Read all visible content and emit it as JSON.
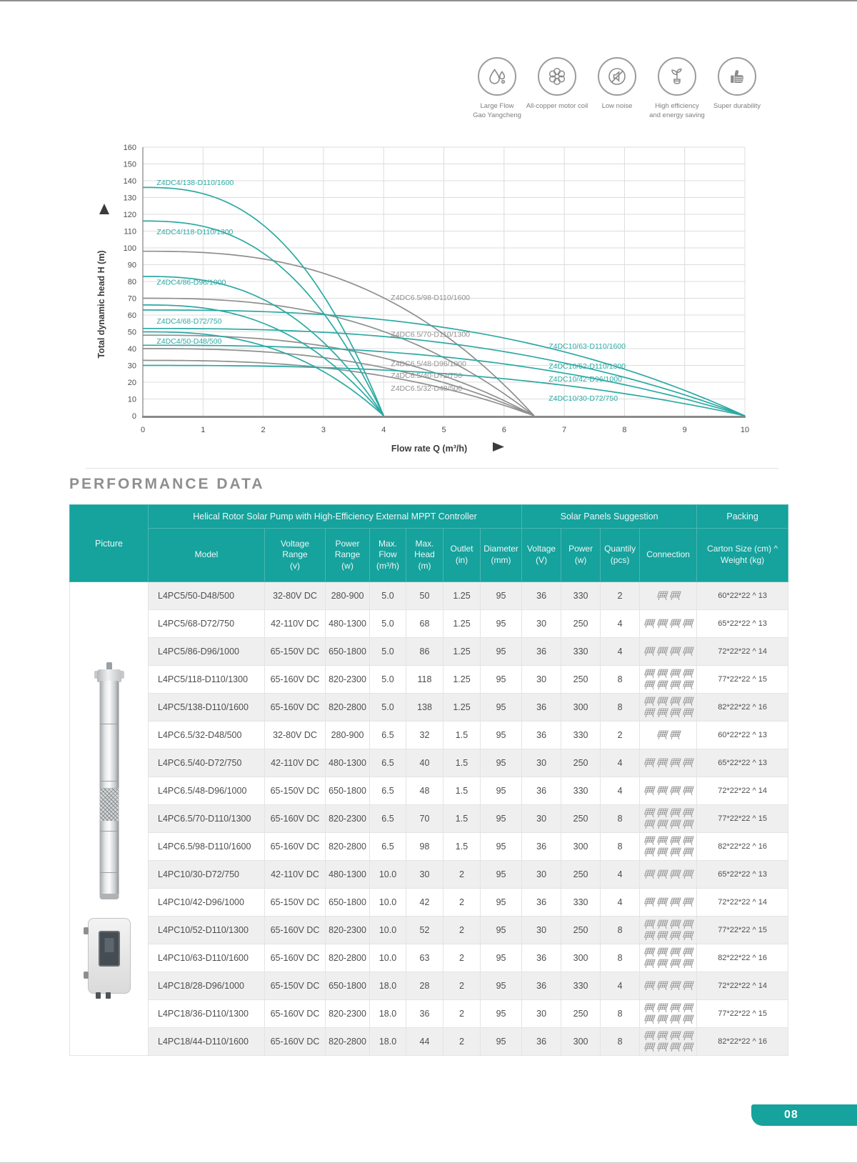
{
  "page": {
    "number": "08"
  },
  "features": [
    {
      "icon": "water-drops-icon",
      "label_lines": [
        "Large Flow",
        "Gao Yangcheng"
      ]
    },
    {
      "icon": "motor-coil-icon",
      "label_lines": [
        "All-copper motor coil"
      ]
    },
    {
      "icon": "low-noise-icon",
      "label_lines": [
        "Low noise"
      ]
    },
    {
      "icon": "energy-saving-icon",
      "label_lines": [
        "High efficiency",
        "and energy saving"
      ]
    },
    {
      "icon": "thumbs-up-icon",
      "label_lines": [
        "Super durability"
      ]
    }
  ],
  "chart_data": {
    "type": "line",
    "xlabel": "Flow rate Q (m³/h)",
    "ylabel": "Total dynamic head H (m)",
    "xlim": [
      0,
      10
    ],
    "ylim": [
      0,
      160
    ],
    "x_tick_step": 1,
    "y_tick_step": 10,
    "grid": true,
    "colors": {
      "teal": "#2ca9a3",
      "gray": "#8f8f8f"
    },
    "series": [
      {
        "name": "Z4DC6.5/98-D110/1600",
        "color_key": "gray",
        "shutoff_head": 98,
        "max_flow": 6.5
      },
      {
        "name": "Z4DC6.5/70-D110/1300",
        "color_key": "gray",
        "shutoff_head": 70,
        "max_flow": 6.5
      },
      {
        "name": "Z4DC6.5/48-D96/1000",
        "color_key": "gray",
        "shutoff_head": 48,
        "max_flow": 6.5
      },
      {
        "name": "Z4DC6.5/40-D72/750",
        "color_key": "gray",
        "shutoff_head": 40,
        "max_flow": 6.5
      },
      {
        "name": "Z4DC6.5/32-D48/500",
        "color_key": "gray",
        "shutoff_head": 33,
        "max_flow": 6.5
      },
      {
        "name": "Z4DC4/138-D110/1600",
        "color_key": "teal",
        "shutoff_head": 136,
        "max_flow": 4
      },
      {
        "name": "Z4DC4/118-D110/1300",
        "color_key": "teal",
        "shutoff_head": 116,
        "max_flow": 4
      },
      {
        "name": "Z4DC4/86-D96/1000",
        "color_key": "teal",
        "shutoff_head": 83,
        "max_flow": 4
      },
      {
        "name": "Z4DC4/68-D72/750",
        "color_key": "teal",
        "shutoff_head": 66,
        "max_flow": 4
      },
      {
        "name": "Z4DC4/50-D48/500",
        "color_key": "teal",
        "shutoff_head": 50,
        "max_flow": 4
      },
      {
        "name": "Z4DC10/63-D110/1600",
        "color_key": "teal",
        "shutoff_head": 63,
        "max_flow": 10
      },
      {
        "name": "Z4DC10/52-D110/1300",
        "color_key": "teal",
        "shutoff_head": 52,
        "max_flow": 10
      },
      {
        "name": "Z4DC10/42-D96/1000",
        "color_key": "teal",
        "shutoff_head": 42,
        "max_flow": 10
      },
      {
        "name": "Z4DC10/30-D72/750",
        "color_key": "teal",
        "shutoff_head": 30,
        "max_flow": 10
      }
    ],
    "curve_labels": [
      {
        "text": "Z4DC4/138-D110/1600",
        "q": 0.23,
        "h": 137.5,
        "color_key": "teal"
      },
      {
        "text": "Z4DC4/118-D110/1300",
        "q": 0.23,
        "h": 108,
        "color_key": "teal"
      },
      {
        "text": "Z4DC4/86-D96/1000",
        "q": 0.23,
        "h": 78,
        "color_key": "teal"
      },
      {
        "text": "Z4DC4/68-D72/750",
        "q": 0.23,
        "h": 55,
        "color_key": "teal"
      },
      {
        "text": "Z4DC4/50-D48/500",
        "q": 0.23,
        "h": 43,
        "color_key": "teal"
      },
      {
        "text": "Z4DC6.5/98-D110/1600",
        "q": 4.12,
        "h": 69,
        "color_key": "gray"
      },
      {
        "text": "Z4DC6.5/70-D110/1300",
        "q": 4.12,
        "h": 47,
        "color_key": "gray"
      },
      {
        "text": "Z4DC6.5/48-D96/1000",
        "q": 4.12,
        "h": 29.5,
        "color_key": "gray"
      },
      {
        "text": "Z4DC6.5/40-D72/750",
        "q": 4.12,
        "h": 22.5,
        "color_key": "gray"
      },
      {
        "text": "Z4DC6.5/32-D48/500",
        "q": 4.12,
        "h": 15,
        "color_key": "gray"
      },
      {
        "text": "Z4DC10/63-D110/1600",
        "q": 6.74,
        "h": 40,
        "color_key": "teal"
      },
      {
        "text": "Z4DC10/52-D110/1300",
        "q": 6.74,
        "h": 28,
        "color_key": "teal"
      },
      {
        "text": "Z4DC10/42-D96/1000",
        "q": 6.74,
        "h": 20.5,
        "color_key": "teal"
      },
      {
        "text": "Z4DC10/30-D72/750",
        "q": 6.74,
        "h": 9,
        "color_key": "teal"
      }
    ]
  },
  "performance": {
    "heading": "PERFORMANCE DATA",
    "group_headers": {
      "picture": "Picture",
      "pump": "Helical Rotor Solar Pump with High-Efficiency External MPPT Controller",
      "solar": "Solar Panels Suggestion",
      "packing": "Packing"
    },
    "column_headers": [
      [
        "Model"
      ],
      [
        "Voltage",
        "Range",
        "(v)"
      ],
      [
        "Power",
        "Range",
        "(w)"
      ],
      [
        "Max.",
        "Flow",
        "(m³/h)"
      ],
      [
        "Max.",
        "Head",
        "(m)"
      ],
      [
        "Outlet",
        "(in)"
      ],
      [
        "Diameter",
        "(mm)"
      ],
      [
        "Voltage",
        "(V)"
      ],
      [
        "Power",
        "(w)"
      ],
      [
        "Quantily",
        "(pcs)"
      ],
      [
        "Connection"
      ],
      [
        "Carton Size (cm) ^",
        "Weight (kg)"
      ]
    ],
    "rows": [
      {
        "model": "L4PC5/50-D48/500",
        "voltage_range": "32-80V DC",
        "power_range": "280-900",
        "max_flow": "5.0",
        "max_head": "50",
        "outlet": "1.25",
        "diameter": "95",
        "sp_voltage": "36",
        "sp_power": "330",
        "sp_qty": 2,
        "carton": "60*22*22 ^ 13"
      },
      {
        "model": "L4PC5/68-D72/750",
        "voltage_range": "42-110V DC",
        "power_range": "480-1300",
        "max_flow": "5.0",
        "max_head": "68",
        "outlet": "1.25",
        "diameter": "95",
        "sp_voltage": "30",
        "sp_power": "250",
        "sp_qty": 4,
        "carton": "65*22*22 ^ 13"
      },
      {
        "model": "L4PC5/86-D96/1000",
        "voltage_range": "65-150V DC",
        "power_range": "650-1800",
        "max_flow": "5.0",
        "max_head": "86",
        "outlet": "1.25",
        "diameter": "95",
        "sp_voltage": "36",
        "sp_power": "330",
        "sp_qty": 4,
        "carton": "72*22*22 ^ 14"
      },
      {
        "model": "L4PC5/118-D110/1300",
        "voltage_range": "65-160V DC",
        "power_range": "820-2300",
        "max_flow": "5.0",
        "max_head": "118",
        "outlet": "1.25",
        "diameter": "95",
        "sp_voltage": "30",
        "sp_power": "250",
        "sp_qty": 8,
        "carton": "77*22*22 ^ 15"
      },
      {
        "model": "L4PC5/138-D110/1600",
        "voltage_range": "65-160V DC",
        "power_range": "820-2800",
        "max_flow": "5.0",
        "max_head": "138",
        "outlet": "1.25",
        "diameter": "95",
        "sp_voltage": "36",
        "sp_power": "300",
        "sp_qty": 8,
        "carton": "82*22*22 ^ 16"
      },
      {
        "model": "L4PC6.5/32-D48/500",
        "voltage_range": "32-80V DC",
        "power_range": "280-900",
        "max_flow": "6.5",
        "max_head": "32",
        "outlet": "1.5",
        "diameter": "95",
        "sp_voltage": "36",
        "sp_power": "330",
        "sp_qty": 2,
        "carton": "60*22*22 ^ 13"
      },
      {
        "model": "L4PC6.5/40-D72/750",
        "voltage_range": "42-110V DC",
        "power_range": "480-1300",
        "max_flow": "6.5",
        "max_head": "40",
        "outlet": "1.5",
        "diameter": "95",
        "sp_voltage": "30",
        "sp_power": "250",
        "sp_qty": 4,
        "carton": "65*22*22 ^ 13"
      },
      {
        "model": "L4PC6.5/48-D96/1000",
        "voltage_range": "65-150V DC",
        "power_range": "650-1800",
        "max_flow": "6.5",
        "max_head": "48",
        "outlet": "1.5",
        "diameter": "95",
        "sp_voltage": "36",
        "sp_power": "330",
        "sp_qty": 4,
        "carton": "72*22*22 ^ 14"
      },
      {
        "model": "L4PC6.5/70-D110/1300",
        "voltage_range": "65-160V DC",
        "power_range": "820-2300",
        "max_flow": "6.5",
        "max_head": "70",
        "outlet": "1.5",
        "diameter": "95",
        "sp_voltage": "30",
        "sp_power": "250",
        "sp_qty": 8,
        "carton": "77*22*22 ^ 15"
      },
      {
        "model": "L4PC6.5/98-D110/1600",
        "voltage_range": "65-160V DC",
        "power_range": "820-2800",
        "max_flow": "6.5",
        "max_head": "98",
        "outlet": "1.5",
        "diameter": "95",
        "sp_voltage": "36",
        "sp_power": "300",
        "sp_qty": 8,
        "carton": "82*22*22 ^ 16"
      },
      {
        "model": "L4PC10/30-D72/750",
        "voltage_range": "42-110V DC",
        "power_range": "480-1300",
        "max_flow": "10.0",
        "max_head": "30",
        "outlet": "2",
        "diameter": "95",
        "sp_voltage": "30",
        "sp_power": "250",
        "sp_qty": 4,
        "carton": "65*22*22 ^ 13"
      },
      {
        "model": "L4PC10/42-D96/1000",
        "voltage_range": "65-150V DC",
        "power_range": "650-1800",
        "max_flow": "10.0",
        "max_head": "42",
        "outlet": "2",
        "diameter": "95",
        "sp_voltage": "36",
        "sp_power": "330",
        "sp_qty": 4,
        "carton": "72*22*22 ^ 14"
      },
      {
        "model": "L4PC10/52-D110/1300",
        "voltage_range": "65-160V DC",
        "power_range": "820-2300",
        "max_flow": "10.0",
        "max_head": "52",
        "outlet": "2",
        "diameter": "95",
        "sp_voltage": "30",
        "sp_power": "250",
        "sp_qty": 8,
        "carton": "77*22*22 ^ 15"
      },
      {
        "model": "L4PC10/63-D110/1600",
        "voltage_range": "65-160V DC",
        "power_range": "820-2800",
        "max_flow": "10.0",
        "max_head": "63",
        "outlet": "2",
        "diameter": "95",
        "sp_voltage": "36",
        "sp_power": "300",
        "sp_qty": 8,
        "carton": "82*22*22 ^ 16"
      },
      {
        "model": "L4PC18/28-D96/1000",
        "voltage_range": "65-150V DC",
        "power_range": "650-1800",
        "max_flow": "18.0",
        "max_head": "28",
        "outlet": "2",
        "diameter": "95",
        "sp_voltage": "36",
        "sp_power": "330",
        "sp_qty": 4,
        "carton": "72*22*22 ^ 14"
      },
      {
        "model": "L4PC18/36-D110/1300",
        "voltage_range": "65-160V DC",
        "power_range": "820-2300",
        "max_flow": "18.0",
        "max_head": "36",
        "outlet": "2",
        "diameter": "95",
        "sp_voltage": "30",
        "sp_power": "250",
        "sp_qty": 8,
        "carton": "77*22*22 ^ 15"
      },
      {
        "model": "L4PC18/44-D110/1600",
        "voltage_range": "65-160V DC",
        "power_range": "820-2800",
        "max_flow": "18.0",
        "max_head": "44",
        "outlet": "2",
        "diameter": "95",
        "sp_voltage": "36",
        "sp_power": "300",
        "sp_qty": 8,
        "carton": "82*22*22 ^ 16"
      }
    ]
  }
}
